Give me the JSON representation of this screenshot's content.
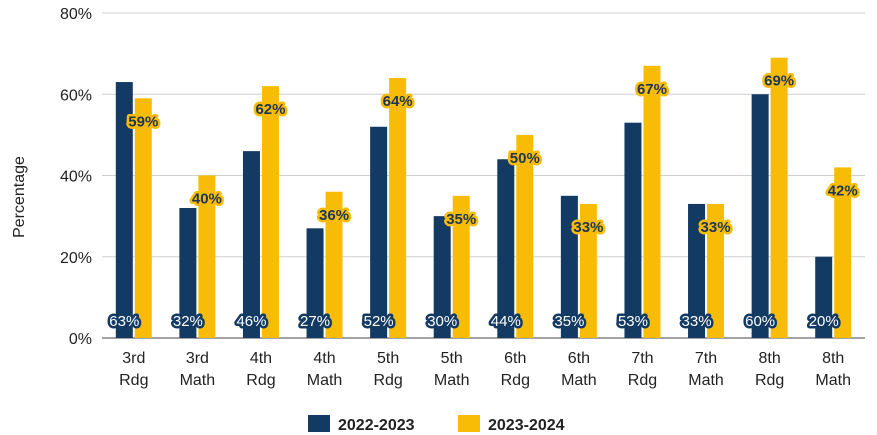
{
  "chart_data": {
    "type": "bar",
    "title": "",
    "xlabel": "",
    "ylabel": "Percentage",
    "ylim": [
      0,
      80
    ],
    "yticks": [
      "0%",
      "20%",
      "40%",
      "60%",
      "80%"
    ],
    "ytick_values": [
      0,
      20,
      40,
      60,
      80
    ],
    "grid": true,
    "legend_position": "bottom",
    "categories": [
      [
        "3rd",
        "Rdg"
      ],
      [
        "3rd",
        "Math"
      ],
      [
        "4th",
        "Rdg"
      ],
      [
        "4th",
        "Math"
      ],
      [
        "5th",
        "Rdg"
      ],
      [
        "5th",
        "Math"
      ],
      [
        "6th",
        "Rdg"
      ],
      [
        "6th",
        "Math"
      ],
      [
        "7th",
        "Rdg"
      ],
      [
        "7th",
        "Math"
      ],
      [
        "8th",
        "Rdg"
      ],
      [
        "8th",
        "Math"
      ]
    ],
    "series": [
      {
        "name": "2022-2023",
        "color": "#133a63",
        "values": [
          63,
          32,
          46,
          27,
          52,
          30,
          44,
          35,
          53,
          33,
          60,
          20
        ],
        "labels": [
          "63%",
          "32%",
          "46%",
          "27%",
          "52%",
          "30%",
          "44%",
          "35%",
          "53%",
          "33%",
          "60%",
          "20%"
        ]
      },
      {
        "name": "2023-2024",
        "color": "#f9bc06",
        "values": [
          59,
          40,
          62,
          36,
          64,
          35,
          50,
          33,
          67,
          33,
          69,
          42
        ],
        "labels": [
          "59%",
          "40%",
          "62%",
          "36%",
          "64%",
          "35%",
          "50%",
          "33%",
          "67%",
          "33%",
          "69%",
          "42%"
        ]
      }
    ]
  }
}
